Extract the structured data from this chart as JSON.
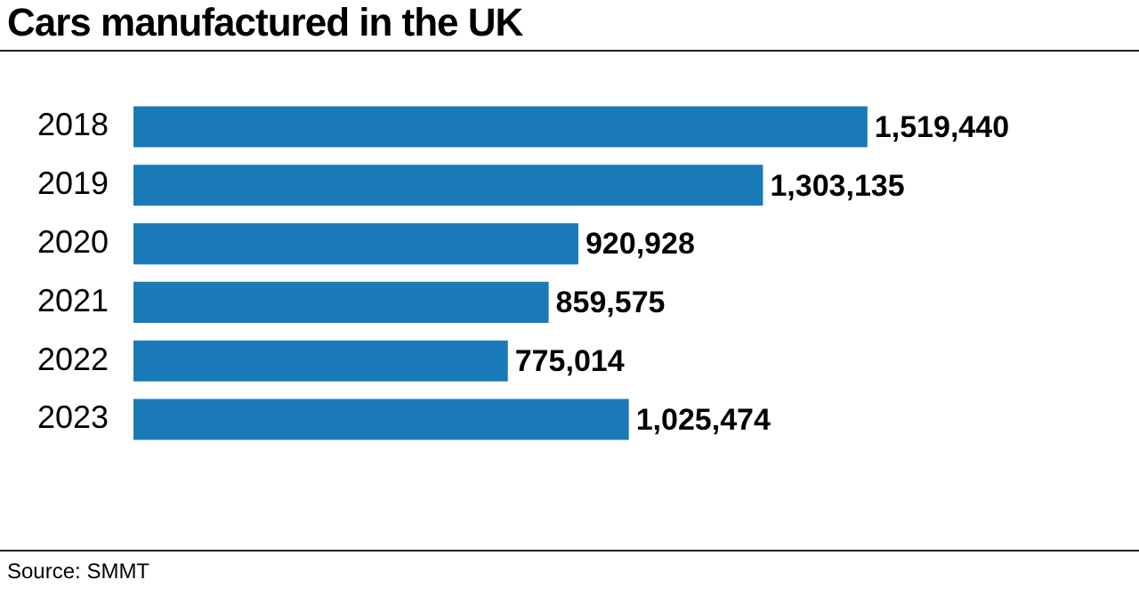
{
  "chart_data": {
    "type": "bar",
    "orientation": "horizontal",
    "title": "Cars manufactured in the UK",
    "categories": [
      "2018",
      "2019",
      "2020",
      "2021",
      "2022",
      "2023"
    ],
    "values": [
      1519440,
      1303135,
      920928,
      859575,
      775014,
      1025474
    ],
    "value_labels": [
      "1,519,440",
      "1,303,135",
      "920,928",
      "859,575",
      "775,014",
      "1,025,474"
    ],
    "color": "#1a7ab8",
    "annotations": [
      "Source: SMMT"
    ]
  }
}
